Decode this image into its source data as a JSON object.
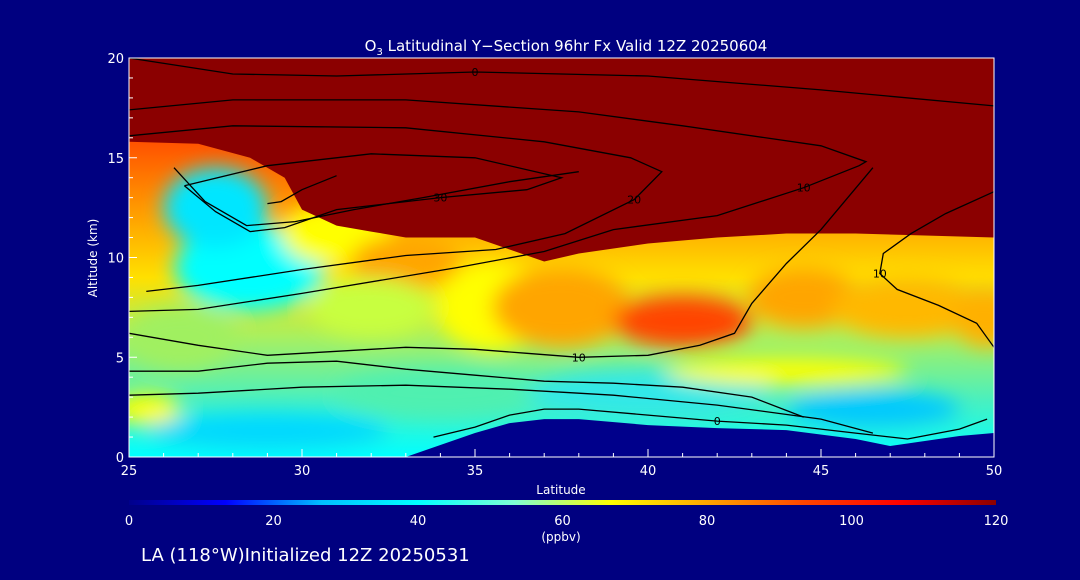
{
  "chart_data": {
    "type": "heatmap",
    "title_prefix": "O",
    "title_subscript": "3",
    "title_rest": " Latitudinal Y−Section 96hr  Fx Valid 12Z 20250604",
    "xlabel": "Latitude",
    "ylabel": "Altitude (km)",
    "xlim": [
      25,
      50
    ],
    "ylim": [
      0,
      20
    ],
    "x_ticks": [
      "25",
      "30",
      "35",
      "40",
      "45",
      "50"
    ],
    "y_ticks": [
      "0",
      "5",
      "10",
      "15",
      "20"
    ],
    "color_scale": {
      "range": [
        0,
        120
      ],
      "ticks": [
        "0",
        "20",
        "40",
        "60",
        "80",
        "100",
        "120"
      ],
      "unit": "(ppbv)",
      "stops": [
        "#00008b",
        "#0000ff",
        "#00bfff",
        "#00ffff",
        "#7fffd4",
        "#ffff00",
        "#ffa500",
        "#ff4500",
        "#ff0000",
        "#8b0000"
      ]
    },
    "surface_km": [
      [
        25,
        0
      ],
      [
        27,
        0
      ],
      [
        29,
        0
      ],
      [
        31,
        0
      ],
      [
        33,
        0
      ],
      [
        34,
        0.6
      ],
      [
        35,
        1.2
      ],
      [
        36,
        1.7
      ],
      [
        37,
        1.9
      ],
      [
        38,
        1.9
      ],
      [
        40,
        1.6
      ],
      [
        42,
        1.45
      ],
      [
        44,
        1.35
      ],
      [
        46,
        0.9
      ],
      [
        47,
        0.55
      ],
      [
        48,
        0.8
      ],
      [
        49,
        1.05
      ],
      [
        50,
        1.2
      ]
    ],
    "tropopause_km": [
      [
        25,
        15.8
      ],
      [
        27,
        15.7
      ],
      [
        28.5,
        15
      ],
      [
        29.5,
        14
      ],
      [
        30,
        12.4
      ],
      [
        31,
        11.6
      ],
      [
        32,
        11.3
      ],
      [
        33,
        11
      ],
      [
        34,
        11
      ],
      [
        35,
        11
      ],
      [
        36,
        10.4
      ],
      [
        37,
        9.8
      ],
      [
        38,
        10.2
      ],
      [
        40,
        10.7
      ],
      [
        42,
        11
      ],
      [
        44,
        11.2
      ],
      [
        46,
        11.2
      ],
      [
        48,
        11.1
      ],
      [
        50,
        11
      ]
    ],
    "contours": [
      {
        "label": "0",
        "points": [
          [
            25,
            20
          ],
          [
            28,
            19.2
          ],
          [
            31,
            19.1
          ],
          [
            35,
            19.3
          ],
          [
            40,
            19.1
          ],
          [
            45,
            18.4
          ],
          [
            50,
            17.6
          ]
        ]
      },
      {
        "label": "10",
        "points": [
          [
            25,
            17.4
          ],
          [
            28,
            17.9
          ],
          [
            33,
            17.9
          ],
          [
            38,
            17.3
          ],
          [
            41,
            16.6
          ],
          [
            45,
            15.6
          ],
          [
            46.3,
            14.8
          ],
          [
            46.1,
            14.6
          ],
          [
            44.5,
            13.5
          ],
          [
            42,
            12.1
          ],
          [
            39,
            11.4
          ],
          [
            37,
            10.3
          ],
          [
            34.5,
            9.5
          ],
          [
            30,
            8.2
          ],
          [
            27,
            7.4
          ],
          [
            25,
            7.3
          ]
        ]
      },
      {
        "label": "10",
        "points": [
          [
            50,
            13.3
          ],
          [
            48.6,
            12.2
          ],
          [
            47.6,
            11.2
          ],
          [
            46.8,
            10.2
          ],
          [
            46.7,
            9.2
          ],
          [
            47.2,
            8.4
          ],
          [
            48.4,
            7.6
          ],
          [
            49.5,
            6.7
          ],
          [
            50,
            5.5
          ]
        ]
      },
      {
        "label": "20",
        "points": [
          [
            25,
            16.1
          ],
          [
            28,
            16.6
          ],
          [
            33,
            16.5
          ],
          [
            37,
            15.8
          ],
          [
            39.5,
            15
          ],
          [
            40.4,
            14.3
          ],
          [
            39.6,
            12.9
          ],
          [
            37.6,
            11.2
          ],
          [
            35.6,
            10.4
          ],
          [
            33,
            10.1
          ],
          [
            30,
            9.4
          ],
          [
            27,
            8.6
          ],
          [
            25.5,
            8.3
          ]
        ]
      },
      {
        "label": "30",
        "points": [
          [
            26.6,
            13.6
          ],
          [
            29,
            14.6
          ],
          [
            32,
            15.2
          ],
          [
            35,
            15
          ],
          [
            37.5,
            14
          ],
          [
            36.5,
            13.4
          ],
          [
            34,
            13
          ],
          [
            31,
            12.4
          ],
          [
            29.5,
            11.5
          ],
          [
            28.5,
            11.3
          ],
          [
            27.5,
            12.3
          ],
          [
            26.6,
            13.6
          ]
        ]
      },
      {
        "label": "",
        "points": [
          [
            26.3,
            14.5
          ],
          [
            27.2,
            12.8
          ],
          [
            28.4,
            11.6
          ],
          [
            29.8,
            11.8
          ],
          [
            31.5,
            12.4
          ],
          [
            33.5,
            13
          ],
          [
            36,
            13.8
          ],
          [
            38,
            14.3
          ]
        ]
      },
      {
        "label": "",
        "points": [
          [
            29,
            12.7
          ],
          [
            29.4,
            12.8
          ],
          [
            30,
            13.4
          ],
          [
            31,
            14.1
          ]
        ]
      },
      {
        "label": "10",
        "points": [
          [
            25,
            6.2
          ],
          [
            27,
            5.6
          ],
          [
            29,
            5.1
          ],
          [
            31,
            5.3
          ],
          [
            33,
            5.5
          ],
          [
            35,
            5.4
          ],
          [
            36.5,
            5.2
          ],
          [
            38,
            5
          ],
          [
            40,
            5.1
          ],
          [
            41.5,
            5.6
          ],
          [
            42.5,
            6.2
          ],
          [
            43,
            7.7
          ],
          [
            44,
            9.7
          ],
          [
            45,
            11.4
          ],
          [
            46.5,
            14.5
          ]
        ]
      },
      {
        "label": "",
        "points": [
          [
            25,
            4.3
          ],
          [
            27,
            4.3
          ],
          [
            29,
            4.7
          ],
          [
            31,
            4.8
          ],
          [
            33,
            4.4
          ],
          [
            35,
            4.1
          ],
          [
            37,
            3.8
          ],
          [
            39,
            3.7
          ],
          [
            41,
            3.5
          ],
          [
            43,
            3
          ],
          [
            44.5,
            2
          ]
        ]
      },
      {
        "label": "",
        "points": [
          [
            25,
            3.1
          ],
          [
            27,
            3.2
          ],
          [
            30,
            3.5
          ],
          [
            33,
            3.6
          ],
          [
            36,
            3.4
          ],
          [
            39,
            3.1
          ],
          [
            42,
            2.6
          ],
          [
            45,
            1.9
          ],
          [
            46.5,
            1.2
          ]
        ]
      },
      {
        "label": "0",
        "points": [
          [
            33.8,
            1
          ],
          [
            35,
            1.5
          ],
          [
            36,
            2.1
          ],
          [
            37,
            2.4
          ],
          [
            38,
            2.4
          ],
          [
            40,
            2.1
          ],
          [
            42,
            1.8
          ],
          [
            44,
            1.6
          ],
          [
            46,
            1.2
          ],
          [
            47.5,
            0.9
          ],
          [
            49,
            1.4
          ],
          [
            49.8,
            1.9
          ]
        ]
      }
    ]
  },
  "footer_text": "LA (118°W)Initialized 12Z 20250531"
}
